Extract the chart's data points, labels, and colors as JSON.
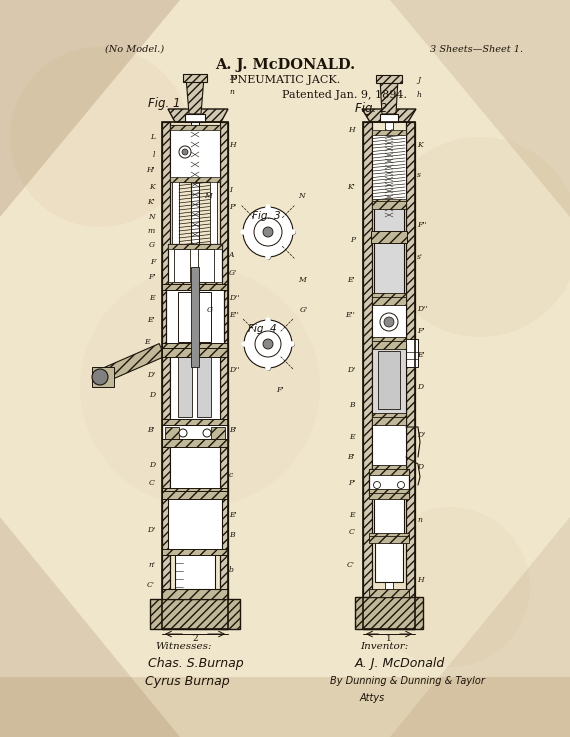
{
  "bg_color": "#f0e6cc",
  "ink_color": "#1c140a",
  "title_line1": "A. J. McDONALD.",
  "title_line2": "PNEUMATIC JACK.",
  "no_model": "(No Model.)",
  "sheets": "3 Sheets—Sheet 1.",
  "patented": "Patented Jan. 9, 1894.",
  "fig1_label": "Fig. 1",
  "fig2_label": "Fig. 2.",
  "fig3_label": "Fig. 3",
  "fig4_label": "Fig. 4",
  "witnesses_title": "Witnesses:",
  "witness1": "Chas. S.Burnap",
  "witness2": "Cyrus Burnap",
  "inventor_title": "Inventor:",
  "inventor": "A. J. McDonald",
  "attorney_line1": "By Dunning & Dunning & Taylor",
  "attorney_line2": "Attys",
  "corner_color": "#c8a870",
  "stain_color": "#d4b87a"
}
